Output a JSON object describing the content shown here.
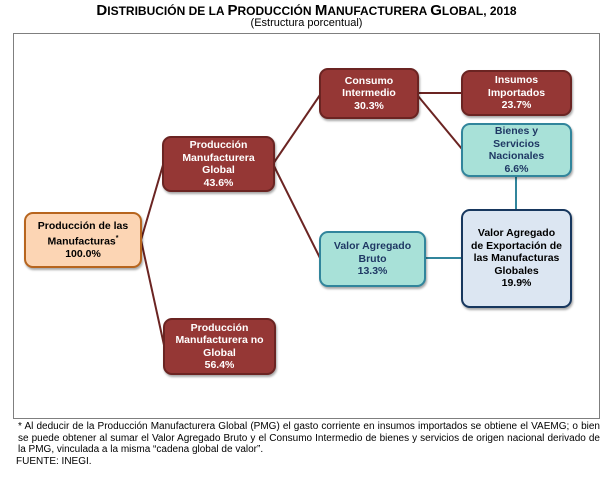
{
  "title": {
    "cap1": "D",
    "rest1": "ISTRIBUCIÓN DE LA ",
    "cap2": "P",
    "rest2": "RODUCCIÓN ",
    "cap3": "M",
    "rest3": "ANUFACTURERA ",
    "cap4": "G",
    "rest4": "LOBAL, 2018"
  },
  "subtitle": "(Estructura porcentual)",
  "colors": {
    "red": "#953735",
    "teal": "#a8e1d8",
    "peach": "#fcd5b4",
    "blue": "#dce6f2",
    "connector": "#6b2422"
  },
  "nodes": {
    "root": {
      "label": "Producción de las Manufacturas",
      "mark": "*",
      "value": "100.0%"
    },
    "pmg": {
      "label": "Producción Manufacturera Global",
      "value": "43.6%"
    },
    "pmng": {
      "label": "Producción Manufacturera no Global",
      "value": "56.4%"
    },
    "ci": {
      "label": "Consumo Intermedio",
      "value": "30.3%"
    },
    "vab": {
      "label": "Valor Agregado Bruto",
      "value": "13.3%"
    },
    "ii": {
      "label": "Insumos Importados",
      "value": "23.7%"
    },
    "bsn": {
      "label": "Bienes y Servicios Nacionales",
      "value": "6.6%"
    },
    "vae": {
      "label": "Valor Agregado de Exportación de las Manufacturas Globales",
      "value": "19.9%"
    }
  },
  "footnote": {
    "line1": "* Al deducir de la Producción Manufacturera Global (PMG) el gasto corriente en insumos importados se obtiene el VAEMG; o bien se puede obtener al sumar el Valor Agregado Bruto y el Consumo Intermedio de bienes y servicios de origen nacional derivado de la PMG, vinculada a la misma “cadena global de valor”.",
    "source": "FUENTE: INEGI."
  }
}
